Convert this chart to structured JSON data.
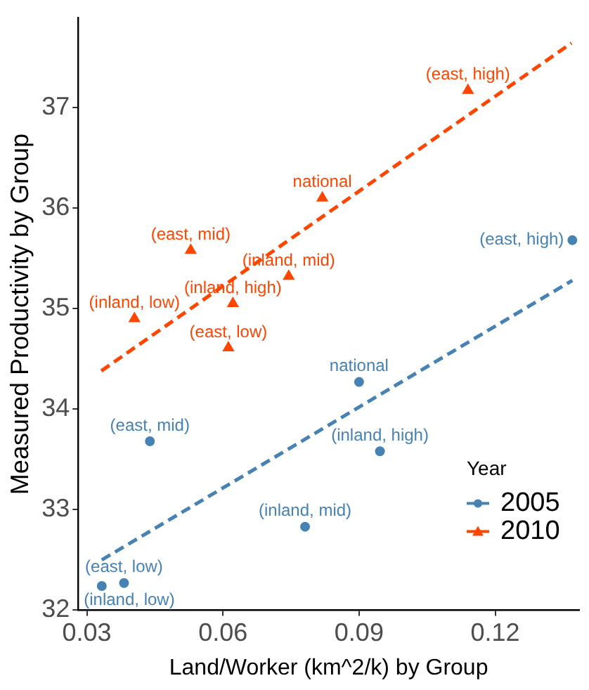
{
  "chart_data": {
    "type": "scatter",
    "xlabel": "Land/Worker (km^2/k) by Group",
    "ylabel": "Measured Productivity by Group",
    "legend_title": "Year",
    "legend": "bottom right",
    "grid": false,
    "xlim": [
      0.0281,
      0.1385
    ],
    "xticks": [
      0.03,
      0.06,
      0.09,
      0.12
    ],
    "ylim": [
      32,
      37.89
    ],
    "yticks": [
      32,
      33,
      34,
      35,
      36,
      37
    ],
    "series": [
      {
        "name": "2005",
        "type": "scatter",
        "marker": "circle",
        "color": "#4682b4",
        "x": [
          0.137,
          0.09,
          0.0439,
          0.0946,
          0.0781,
          0.0382,
          0.0333
        ],
        "values": [
          35.68,
          34.27,
          33.68,
          33.58,
          32.83,
          32.27,
          32.24
        ],
        "value_labels": [
          "(east, high)",
          "national",
          "(east, mid)",
          "(inland, high)",
          "(inland, mid)",
          "(east, low)",
          "(inland, low)"
        ]
      },
      {
        "name": "2010",
        "type": "scatter",
        "marker": "triangle",
        "color": "#ff4500",
        "x": [
          0.114,
          0.0819,
          0.0529,
          0.0745,
          0.0622,
          0.0405,
          0.0612
        ],
        "values": [
          37.17,
          36.1,
          35.58,
          35.32,
          35.05,
          34.9,
          34.61
        ],
        "value_labels": [
          "(east, high)",
          "national",
          "(east, mid)",
          "(inland, mid)",
          "(inland, high)",
          "(inland, low)",
          "(east, low)"
        ]
      },
      {
        "type": "line",
        "line_style": "dashed",
        "color": "#4682b4",
        "x": [
          0.0333,
          0.137
        ],
        "values": [
          32.5,
          35.28
        ]
      },
      {
        "type": "line",
        "line_style": "dashed",
        "color": "#ff4500",
        "x": [
          0.0332,
          0.1368
        ],
        "values": [
          34.38,
          37.64
        ]
      }
    ]
  }
}
